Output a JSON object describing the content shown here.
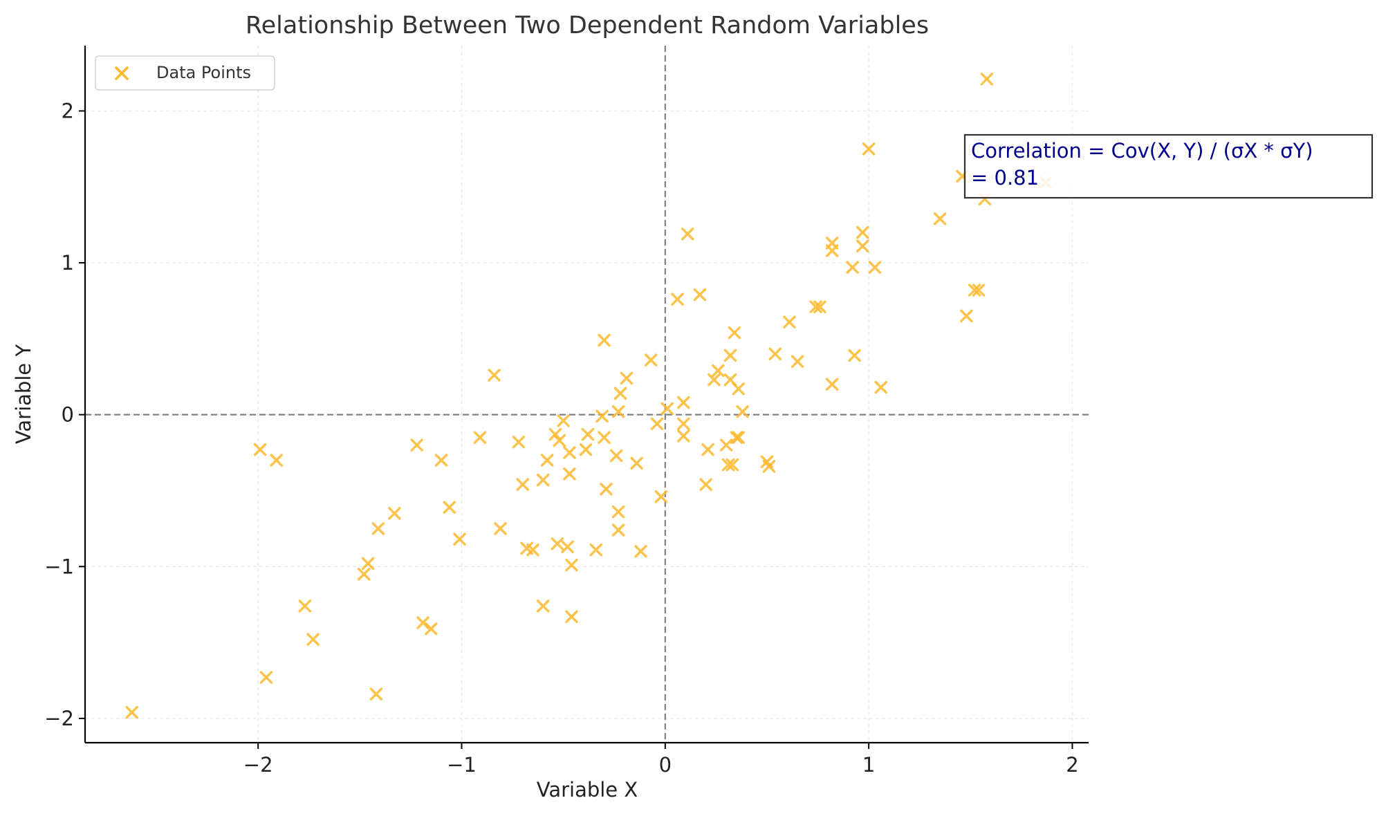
{
  "chart_data": {
    "type": "scatter",
    "title": "Relationship Between Two Dependent Random Variables",
    "xlabel": "Variable X",
    "ylabel": "Variable Y",
    "xlim": [
      -2.85,
      2.08
    ],
    "ylim": [
      -2.16,
      2.43
    ],
    "xticks": [
      -2,
      -1,
      0,
      1,
      2
    ],
    "yticks": [
      -2,
      -1,
      0,
      1,
      2
    ],
    "grid": true,
    "legend": {
      "position": "upper-left",
      "entries": [
        "Data Points"
      ]
    },
    "reference_lines": {
      "x": 0,
      "y": 0,
      "style": "dashed"
    },
    "annotation": {
      "lines": [
        "Correlation = Cov(X, Y) / (σX * σY)",
        "= 0.81"
      ]
    },
    "colors": {
      "marker": "#FBB92C",
      "annotation_text": "#00008B",
      "reference_line": "#808080",
      "grid": "#E6E6E6",
      "axis": "#000000"
    },
    "series": [
      {
        "name": "Data Points",
        "marker": "x",
        "points": [
          [
            1.58,
            2.21
          ],
          [
            1.0,
            1.75
          ],
          [
            1.46,
            1.57
          ],
          [
            1.87,
            1.53
          ],
          [
            1.57,
            1.42
          ],
          [
            1.35,
            1.29
          ],
          [
            0.11,
            1.19
          ],
          [
            0.97,
            1.2
          ],
          [
            0.82,
            1.13
          ],
          [
            0.97,
            1.11
          ],
          [
            0.82,
            1.08
          ],
          [
            0.92,
            0.97
          ],
          [
            1.03,
            0.97
          ],
          [
            1.52,
            0.82
          ],
          [
            1.54,
            0.82
          ],
          [
            0.17,
            0.79
          ],
          [
            0.06,
            0.76
          ],
          [
            0.74,
            0.71
          ],
          [
            0.76,
            0.71
          ],
          [
            1.48,
            0.65
          ],
          [
            0.61,
            0.61
          ],
          [
            0.34,
            0.54
          ],
          [
            -0.3,
            0.49
          ],
          [
            0.54,
            0.4
          ],
          [
            0.93,
            0.39
          ],
          [
            0.32,
            0.39
          ],
          [
            -0.07,
            0.36
          ],
          [
            0.65,
            0.35
          ],
          [
            0.26,
            0.29
          ],
          [
            -0.84,
            0.26
          ],
          [
            -0.19,
            0.24
          ],
          [
            0.24,
            0.23
          ],
          [
            0.32,
            0.23
          ],
          [
            0.82,
            0.2
          ],
          [
            1.06,
            0.18
          ],
          [
            0.36,
            0.17
          ],
          [
            -0.22,
            0.14
          ],
          [
            0.09,
            0.08
          ],
          [
            0.01,
            0.04
          ],
          [
            0.38,
            0.02
          ],
          [
            -0.23,
            0.02
          ],
          [
            -0.31,
            -0.01
          ],
          [
            -0.5,
            -0.04
          ],
          [
            -0.04,
            -0.06
          ],
          [
            0.09,
            -0.06
          ],
          [
            -0.54,
            -0.13
          ],
          [
            -0.38,
            -0.13
          ],
          [
            0.09,
            -0.14
          ],
          [
            0.36,
            -0.15
          ],
          [
            -0.91,
            -0.15
          ],
          [
            -0.3,
            -0.15
          ],
          [
            0.35,
            -0.15
          ],
          [
            -0.52,
            -0.17
          ],
          [
            -0.72,
            -0.18
          ],
          [
            -1.22,
            -0.2
          ],
          [
            0.3,
            -0.2
          ],
          [
            -0.39,
            -0.23
          ],
          [
            0.21,
            -0.23
          ],
          [
            -1.99,
            -0.23
          ],
          [
            -0.47,
            -0.25
          ],
          [
            -0.24,
            -0.27
          ],
          [
            -0.58,
            -0.3
          ],
          [
            -1.91,
            -0.3
          ],
          [
            -1.1,
            -0.3
          ],
          [
            0.5,
            -0.31
          ],
          [
            -0.14,
            -0.32
          ],
          [
            0.33,
            -0.33
          ],
          [
            0.31,
            -0.33
          ],
          [
            0.51,
            -0.34
          ],
          [
            -0.47,
            -0.39
          ],
          [
            -0.6,
            -0.43
          ],
          [
            -0.7,
            -0.46
          ],
          [
            0.2,
            -0.46
          ],
          [
            -0.29,
            -0.49
          ],
          [
            -0.02,
            -0.54
          ],
          [
            -1.06,
            -0.61
          ],
          [
            -0.23,
            -0.64
          ],
          [
            -1.33,
            -0.65
          ],
          [
            -1.41,
            -0.75
          ],
          [
            -0.81,
            -0.75
          ],
          [
            -0.23,
            -0.76
          ],
          [
            -1.01,
            -0.82
          ],
          [
            -0.53,
            -0.85
          ],
          [
            -0.48,
            -0.87
          ],
          [
            -0.68,
            -0.88
          ],
          [
            -0.65,
            -0.89
          ],
          [
            -0.34,
            -0.89
          ],
          [
            -0.12,
            -0.9
          ],
          [
            -1.46,
            -0.98
          ],
          [
            -0.46,
            -0.99
          ],
          [
            -1.48,
            -1.05
          ],
          [
            -1.77,
            -1.26
          ],
          [
            -0.6,
            -1.26
          ],
          [
            -0.46,
            -1.33
          ],
          [
            -1.19,
            -1.37
          ],
          [
            -1.15,
            -1.41
          ],
          [
            -1.73,
            -1.48
          ],
          [
            -1.96,
            -1.73
          ],
          [
            -1.42,
            -1.84
          ],
          [
            -2.62,
            -1.96
          ]
        ]
      }
    ]
  }
}
